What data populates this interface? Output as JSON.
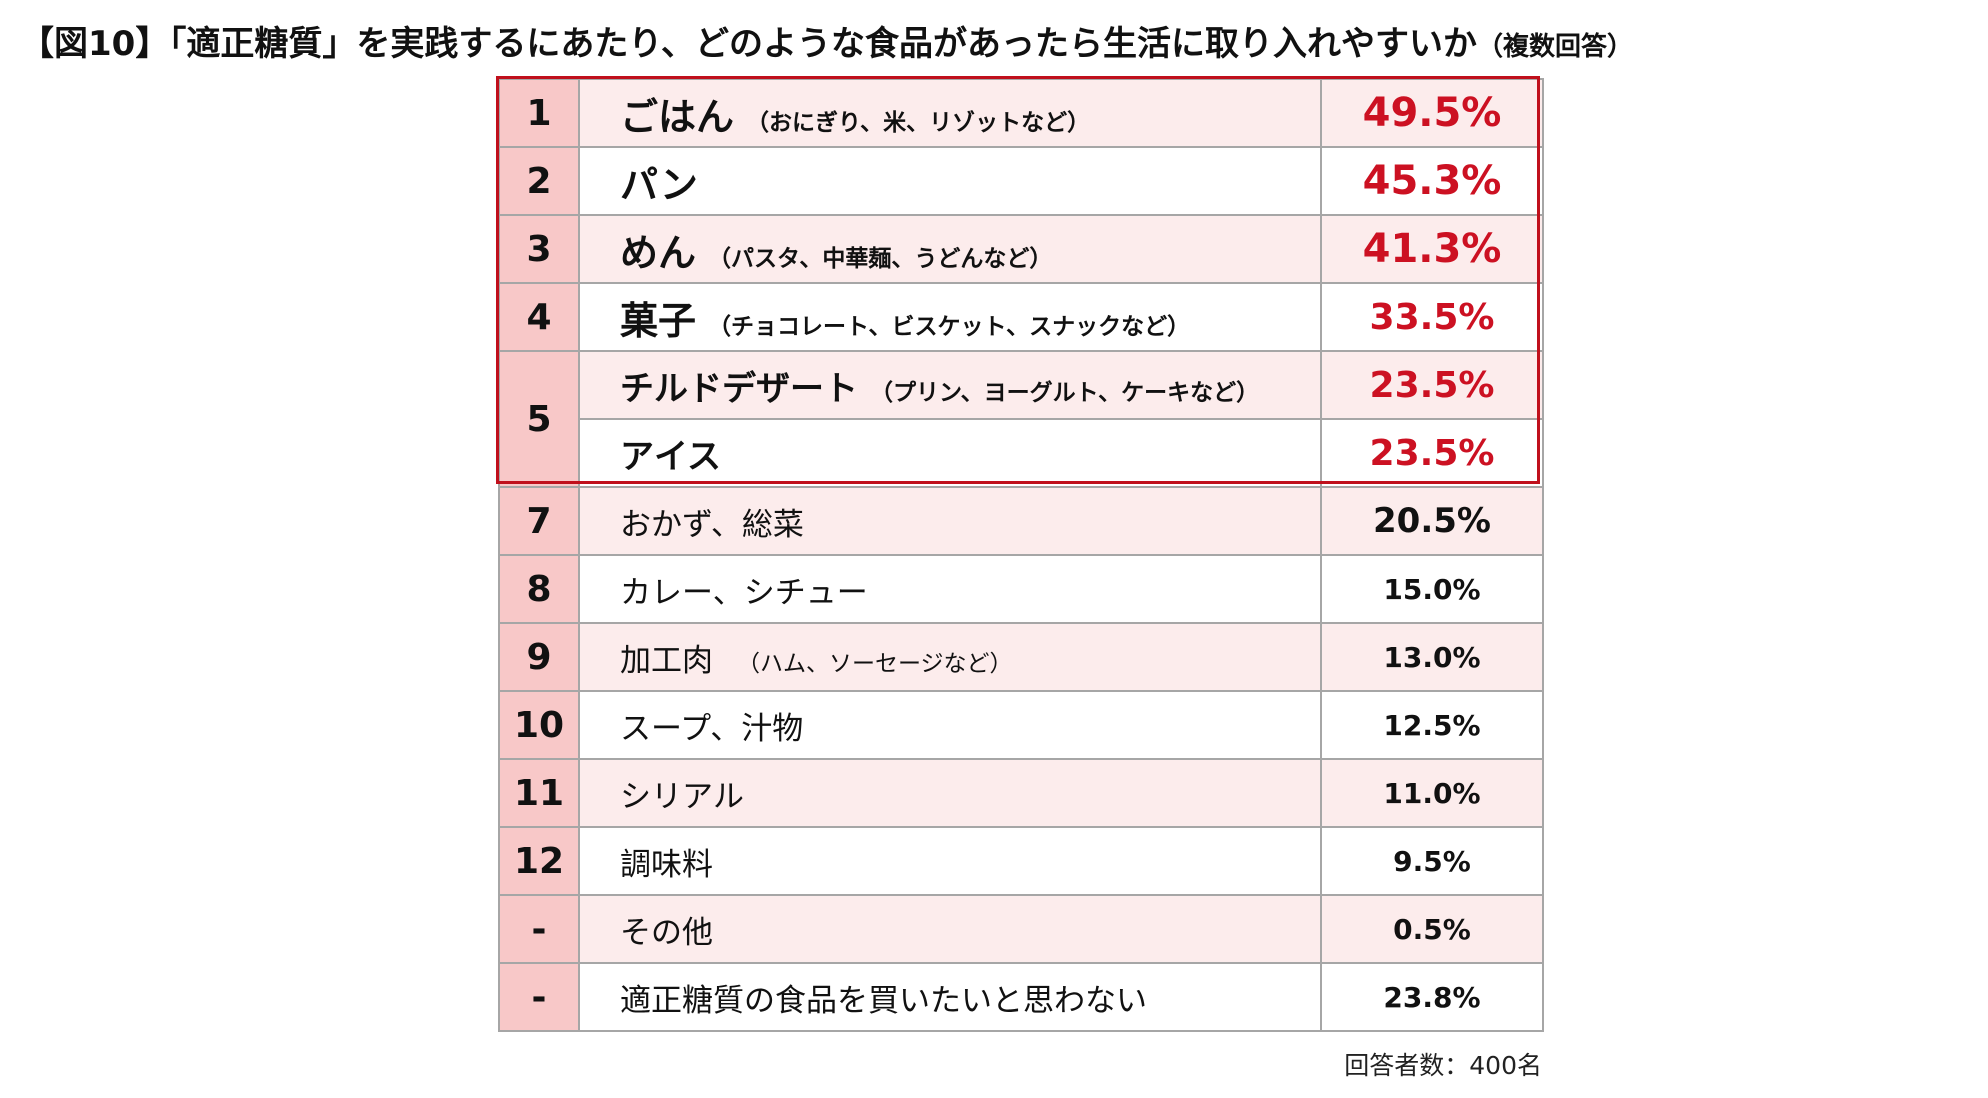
{
  "title": {
    "main": "【図10】「適正糖質」を実践するにあたり、どのような食品があったら生活に取り入れやすいか",
    "sub": "（複数回答）"
  },
  "chart_data": {
    "type": "table",
    "rows": [
      {
        "rank": "1",
        "item": "ごはん",
        "note": "（おにぎり、米、リゾットなど）",
        "value": "49.5%",
        "highlight": true
      },
      {
        "rank": "2",
        "item": "パン",
        "note": "",
        "value": "45.3%",
        "highlight": true
      },
      {
        "rank": "3",
        "item": "めん",
        "note": "（パスタ、中華麺、うどんなど）",
        "value": "41.3%",
        "highlight": true
      },
      {
        "rank": "4",
        "item": "菓子",
        "note": "（チョコレート、ビスケット、スナックなど）",
        "value": "33.5%",
        "highlight": true
      },
      {
        "rank": "5",
        "item": "チルドデザート",
        "note": "（プリン、ヨーグルト、ケーキなど）",
        "value": "23.5%",
        "highlight": true
      },
      {
        "rank": "5",
        "item": "アイス",
        "note": "",
        "value": "23.5%",
        "highlight": true
      },
      {
        "rank": "7",
        "item": "おかず、総菜",
        "note": "",
        "value": "20.5%",
        "highlight": false
      },
      {
        "rank": "8",
        "item": "カレー、シチュー",
        "note": "",
        "value": "15.0%",
        "highlight": false
      },
      {
        "rank": "9",
        "item": "加工肉",
        "note": "（ハム、ソーセージなど）",
        "value": "13.0%",
        "highlight": false
      },
      {
        "rank": "10",
        "item": "スープ、汁物",
        "note": "",
        "value": "12.5%",
        "highlight": false
      },
      {
        "rank": "11",
        "item": "シリアル",
        "note": "",
        "value": "11.0%",
        "highlight": false
      },
      {
        "rank": "12",
        "item": "調味料",
        "note": "",
        "value": "9.5%",
        "highlight": false
      },
      {
        "rank": "-",
        "item": "その他",
        "note": "",
        "value": "0.5%",
        "highlight": false
      },
      {
        "rank": "-",
        "item": "適正糖質の食品を買いたいと思わない",
        "note": "",
        "value": "23.8%",
        "highlight": false
      }
    ]
  },
  "colors": {
    "accent_red": "#cc1122",
    "frame_red": "#c0101c",
    "rank_bg": "#f8c8c8",
    "stripe_bg": "#fcecec"
  },
  "footer": "回答者数：400名"
}
